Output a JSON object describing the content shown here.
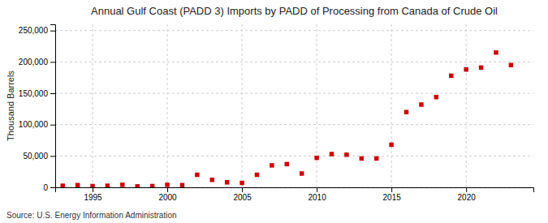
{
  "chart_data": {
    "type": "scatter",
    "title": "Annual Gulf Coast (PADD 3) Imports by PADD of Processing from Canada of Crude Oil",
    "ylabel": "Thousand Barrels",
    "annotations": [
      "Source: U.S. Energy Information Administration"
    ],
    "x": [
      1993,
      1994,
      1995,
      1996,
      1997,
      1998,
      1999,
      2000,
      2001,
      2002,
      2003,
      2004,
      2005,
      2006,
      2007,
      2008,
      2009,
      2010,
      2011,
      2012,
      2013,
      2014,
      2015,
      2016,
      2017,
      2018,
      2019,
      2020,
      2021,
      2022,
      2023
    ],
    "values": [
      2500,
      3500,
      2000,
      2500,
      4000,
      1500,
      2000,
      4000,
      3500,
      20000,
      12000,
      8000,
      7000,
      20000,
      35000,
      37000,
      22000,
      47000,
      53000,
      52000,
      46000,
      46000,
      68000,
      120000,
      132000,
      144000,
      178000,
      188000,
      191000,
      215000,
      195000
    ],
    "color": "#cc0000",
    "marker": "square",
    "xlim": [
      1992.5,
      2024.5
    ],
    "xticks": [
      1995,
      2000,
      2005,
      2010,
      2015,
      2020
    ],
    "ylim": [
      0,
      260000
    ],
    "yticks": [
      0,
      {
        "value": 50000,
        "label": "50,000"
      },
      {
        "value": 100000,
        "label": "100,000"
      },
      {
        "value": 150000,
        "label": "150,000"
      },
      {
        "value": 200000,
        "label": "200,000"
      },
      {
        "value": 250000,
        "label": "250,000"
      }
    ],
    "grid": true
  }
}
